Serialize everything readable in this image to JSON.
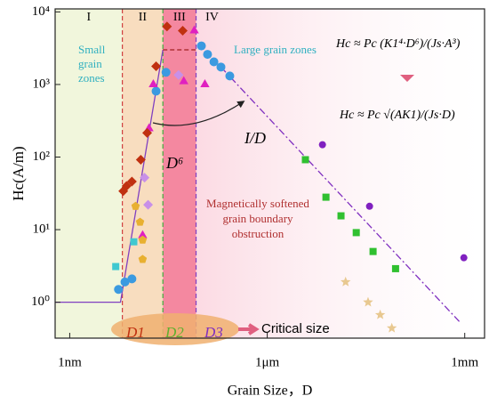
{
  "chart_data": {
    "type": "scatter",
    "xlabel": "Grain Size，D",
    "ylabel": "Hc(A/m)",
    "log_x": true,
    "log_y": true,
    "xlim": [
      0.6,
      2000000
    ],
    "ylim": [
      0.32,
      11000
    ],
    "xticks": [
      {
        "value": 1,
        "label": "1nm"
      },
      {
        "value": 1000,
        "label": "1μm"
      },
      {
        "value": 1000000,
        "label": "1mm"
      }
    ],
    "yticks": [
      {
        "value": 1,
        "label": "10⁰"
      },
      {
        "value": 10,
        "label": "10¹"
      },
      {
        "value": 100,
        "label": "10²"
      },
      {
        "value": 1000,
        "label": "10³"
      },
      {
        "value": 10000,
        "label": "10⁴"
      }
    ],
    "regions": {
      "labels": [
        "I",
        "II",
        "III",
        "IV"
      ],
      "bounds": [
        6.3,
        26,
        83
      ],
      "colors": [
        "#f0f5d8",
        "#f7d9b8",
        "#f06080",
        "#fbe3ea"
      ],
      "line_colors": [
        "#d04040",
        "#40b040",
        "#8040c0"
      ]
    },
    "series": [
      {
        "marker": "circle",
        "color": "#3b9ae0",
        "x": [
          5.5,
          6.9,
          8.8,
          20.5,
          29,
          100,
          124,
          155,
          198,
          270
        ],
        "y": [
          1.5,
          1.9,
          2.1,
          810,
          1470,
          3400,
          2600,
          2050,
          1740,
          1310
        ]
      },
      {
        "marker": "triangle",
        "color": "#e020c0",
        "x": [
          12.8,
          16,
          18.6,
          54,
          78,
          113
        ],
        "y": [
          8.3,
          247,
          1000,
          1100,
          5500,
          1000
        ]
      },
      {
        "marker": "diamond",
        "color": "#c03010",
        "x": [
          6.5,
          7.3,
          8.8,
          12,
          15,
          20.5,
          30,
          52
        ],
        "y": [
          34,
          40,
          46,
          92,
          215,
          1780,
          6300,
          5500
        ]
      },
      {
        "marker": "diamond",
        "color": "#c890e8",
        "x": [
          13.7,
          15.5,
          45
        ],
        "y": [
          52,
          22,
          1350
        ]
      },
      {
        "marker": "pentagon",
        "color": "#e8b030",
        "x": [
          10,
          11.7,
          12.8,
          12.8
        ],
        "y": [
          21,
          12.7,
          7.2,
          3.9
        ]
      },
      {
        "marker": "square",
        "color": "#40c8d0",
        "x": [
          5.0,
          9.4
        ],
        "y": [
          3.1,
          6.8
        ]
      },
      {
        "marker": "square",
        "color": "#30c030",
        "x": [
          3800,
          7800,
          13200,
          22500,
          40500,
          89000
        ],
        "y": [
          92,
          28,
          15.5,
          9.1,
          5.0,
          2.9
        ]
      },
      {
        "marker": "ball",
        "color": "#8020c0",
        "x": [
          6900,
          35800,
          970000
        ],
        "y": [
          148,
          21,
          4.1
        ]
      },
      {
        "marker": "star",
        "color": "#e8c890",
        "x": [
          15500,
          34000,
          52000,
          78000
        ],
        "y": [
          1.9,
          1.0,
          0.67,
          0.44
        ]
      }
    ],
    "guide_lines": [
      {
        "color": "#8040c0",
        "dash": "none",
        "x": [
          0.6,
          5.9,
          26
        ],
        "y": [
          1,
          1,
          3000
        ]
      },
      {
        "color": "#a02020",
        "dash": "5,3",
        "x": [
          26,
          83
        ],
        "y": [
          3000,
          3000
        ]
      },
      {
        "color": "#8030c0",
        "dash": "8,3,2,3",
        "x": [
          198,
          830000
        ],
        "y": [
          1740,
          0.54
        ]
      }
    ],
    "annotations": {
      "small": [
        "Small",
        "grain",
        "zones"
      ],
      "large": "Large grain zones",
      "soft": [
        "Magnetically softened",
        "grain boundary",
        "obstruction"
      ],
      "d6": "D⁶",
      "inv": "I/D",
      "formula1": "Hc ≈ Pc (K1⁴·D⁶)/(Js·A³)",
      "formula2": "Hc ≈ Pc √(AK1)/(Js·D)",
      "d": [
        "D1",
        "D2",
        "D3"
      ],
      "critical": "Critical size"
    }
  }
}
